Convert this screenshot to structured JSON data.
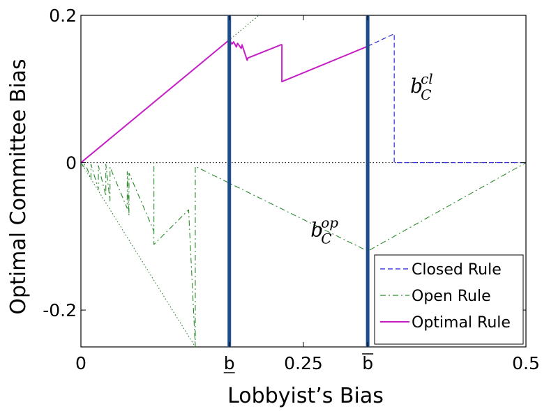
{
  "chart_data": {
    "type": "line",
    "xlabel": "Lobbyist’s Bias",
    "ylabel": "Optimal Committee Bias",
    "xlim": [
      0,
      0.5
    ],
    "ylim": [
      -0.25,
      0.2
    ],
    "x_ticks": [
      {
        "value": 0,
        "label": "0"
      },
      {
        "value": 0.1667,
        "label": "b",
        "decoration": "underline"
      },
      {
        "value": 0.25,
        "label": "0.25"
      },
      {
        "value": 0.3222,
        "label": "b",
        "decoration": "overline"
      },
      {
        "value": 0.5,
        "label": "0.5"
      }
    ],
    "y_ticks": [
      {
        "value": 0.2,
        "label": "0.2"
      },
      {
        "value": 0,
        "label": "0"
      },
      {
        "value": -0.2,
        "label": "-0.2"
      }
    ],
    "vertical_lines": [
      {
        "x": 0.1667,
        "color": "#1c4d8c"
      },
      {
        "x": 0.3222,
        "color": "#1c4d8c"
      }
    ],
    "reference_lines": [
      {
        "name": "y = x",
        "style": "dotted",
        "color": "#2a7a2a",
        "points": [
          [
            0,
            0
          ],
          [
            0.2,
            0.2
          ]
        ]
      },
      {
        "name": "y = -x",
        "style": "dotted",
        "color": "#2a7a2a",
        "points": [
          [
            0,
            0
          ],
          [
            0.1285,
            -0.25
          ]
        ]
      },
      {
        "name": "y = 0",
        "style": "dotted",
        "color": "#000000",
        "points": [
          [
            0,
            0
          ],
          [
            0.5,
            0
          ]
        ]
      }
    ],
    "series": [
      {
        "name": "Closed Rule",
        "style": "dashed",
        "color": "#1a1ad6",
        "x": [
          0.3222,
          0.352,
          0.352,
          0.5
        ],
        "y": [
          0.158,
          0.175,
          0.0,
          0.0
        ]
      },
      {
        "name": "Open Rule",
        "style": "dashdot",
        "color": "#2a8a2a",
        "x": [
          0,
          0.0036,
          0.0036,
          0.007,
          0.0113,
          0.0113,
          0.0196,
          0.0196,
          0.028,
          0.028,
          0.0327,
          0.0327,
          0.052,
          0.052,
          0.054,
          0.054,
          0.082,
          0.082,
          0.082,
          0.121,
          0.1285,
          0.1285,
          0.3222,
          0.5
        ],
        "y": [
          0,
          -0.006,
          -0.002,
          -0.008,
          -0.022,
          -0.002,
          -0.036,
          -0.004,
          -0.045,
          -0.002,
          -0.052,
          -0.006,
          -0.062,
          -0.012,
          -0.072,
          -0.014,
          -0.093,
          0,
          -0.111,
          -0.064,
          -0.25,
          -0.005,
          -0.12,
          0
        ]
      },
      {
        "name": "Optimal Rule",
        "style": "solid",
        "color": "#c41ec4",
        "x": [
          0,
          0.1667,
          0.1697,
          0.1715,
          0.1747,
          0.176,
          0.1801,
          0.181,
          0.1868,
          0.1875,
          0.2247,
          0.2258,
          0.2258,
          0.3222
        ],
        "y": [
          0,
          0.1667,
          0.161,
          0.164,
          0.157,
          0.162,
          0.155,
          0.16,
          0.139,
          0.142,
          0.16,
          0.16,
          0.11,
          0.158
        ]
      }
    ],
    "legend": {
      "position": "bottom-right",
      "entries": [
        "Closed Rule",
        "Open Rule",
        "Optimal Rule"
      ]
    },
    "annotations": [
      {
        "base": "b",
        "sub": "C",
        "sup": "cl",
        "x": 0.37,
        "y": 0.095
      },
      {
        "base": "b",
        "sub": "C",
        "sup": "op",
        "x": 0.258,
        "y": -0.1
      }
    ]
  }
}
